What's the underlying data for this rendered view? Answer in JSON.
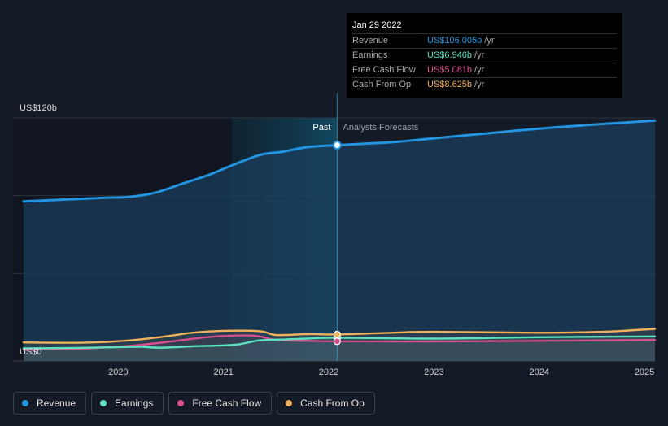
{
  "tooltip": {
    "date": "Jan 29 2022",
    "rows": [
      {
        "label": "Revenue",
        "value": "US$106.005b",
        "unit": "/yr",
        "color": "#2394df"
      },
      {
        "label": "Earnings",
        "value": "US$6.946b",
        "unit": "/yr",
        "color": "#5ee1c1"
      },
      {
        "label": "Free Cash Flow",
        "value": "US$5.081b",
        "unit": "/yr",
        "color": "#d84e8f"
      },
      {
        "label": "Cash From Op",
        "value": "US$8.625b",
        "unit": "/yr",
        "color": "#efb15b"
      }
    ]
  },
  "legend": [
    {
      "label": "Revenue",
      "color": "#2394df"
    },
    {
      "label": "Earnings",
      "color": "#5ee1c1"
    },
    {
      "label": "Free Cash Flow",
      "color": "#d84e8f"
    },
    {
      "label": "Cash From Op",
      "color": "#efb15b"
    }
  ],
  "chart_data": {
    "type": "line",
    "y_top_label": "US$120b",
    "y_zero_label": "US$0",
    "past_label": "Past",
    "forecast_label": "Analysts Forecasts",
    "divider_x": 2022.08,
    "highlight_start_x": 2021.08,
    "xlim": [
      2019.0,
      2025.1
    ],
    "ylim": [
      -5,
      120
    ],
    "x_ticks": [
      {
        "value": 2020,
        "label": "2020"
      },
      {
        "value": 2021,
        "label": "2021"
      },
      {
        "value": 2022,
        "label": "2022"
      },
      {
        "value": 2023,
        "label": "2023"
      },
      {
        "value": 2024,
        "label": "2024"
      },
      {
        "value": 2025,
        "label": "2025"
      }
    ],
    "series": [
      {
        "name": "Revenue",
        "color": "#2394df",
        "x": [
          2019.1,
          2019.5,
          2019.9,
          2020.1,
          2020.35,
          2020.6,
          2020.85,
          2021.1,
          2021.35,
          2021.55,
          2021.8,
          2022.08,
          2022.6,
          2023.0,
          2023.5,
          2024.0,
          2024.5,
          2025.1
        ],
        "y": [
          77,
          78,
          79,
          79.3,
          81.5,
          86,
          90.5,
          96,
          101,
          102.5,
          105,
          106.005,
          107.5,
          109.5,
          112,
          114.5,
          116.5,
          118.6
        ]
      },
      {
        "name": "Earnings",
        "color": "#5ee1c1",
        "x": [
          2019.1,
          2019.6,
          2019.9,
          2020.2,
          2020.4,
          2020.7,
          2021.0,
          2021.15,
          2021.35,
          2021.6,
          2021.8,
          2022.08,
          2023.0,
          2024.0,
          2025.1
        ],
        "y": [
          1.5,
          1.7,
          2.0,
          2.3,
          1.8,
          2.5,
          3.0,
          3.6,
          5.6,
          6.1,
          6.5,
          6.946,
          6.5,
          7.2,
          7.6
        ]
      },
      {
        "name": "Free Cash Flow",
        "color": "#d84e8f",
        "x": [
          2019.1,
          2019.6,
          2019.9,
          2020.2,
          2020.5,
          2020.8,
          2021.0,
          2021.3,
          2021.5,
          2021.8,
          2022.08,
          2023.0,
          2024.0,
          2025.1
        ],
        "y": [
          0.8,
          1.2,
          2.0,
          3.2,
          5.0,
          7.0,
          7.8,
          8.0,
          5.8,
          5.3,
          5.081,
          5.0,
          5.3,
          5.8
        ]
      },
      {
        "name": "Cash From Op",
        "color": "#efb15b",
        "x": [
          2019.1,
          2019.6,
          2019.9,
          2020.2,
          2020.5,
          2020.7,
          2021.0,
          2021.35,
          2021.5,
          2021.8,
          2022.08,
          2022.6,
          2023.0,
          2024.0,
          2024.6,
          2025.1
        ],
        "y": [
          4.5,
          4.3,
          4.8,
          6.0,
          8.0,
          9.5,
          10.5,
          10.3,
          8.3,
          8.8,
          8.625,
          9.5,
          10.0,
          9.5,
          10.0,
          11.5
        ]
      }
    ],
    "highlight_point": {
      "x": 2022.08,
      "values": [
        106.005,
        6.946,
        5.081,
        8.625
      ]
    },
    "gridlines_y": [
      0,
      40,
      80,
      120
    ],
    "grid": true
  }
}
